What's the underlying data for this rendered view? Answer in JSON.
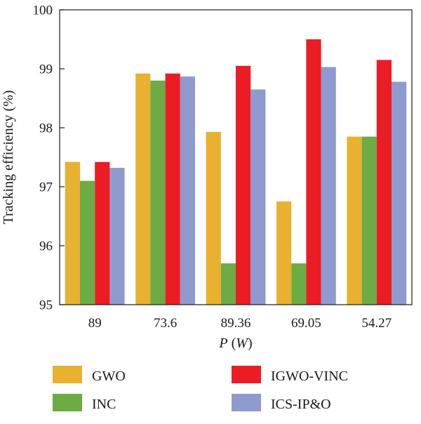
{
  "chart_data": {
    "type": "bar",
    "xlabel": "P (W)",
    "ylabel": "Tracking efficiency (%)",
    "ylim": [
      95,
      100
    ],
    "yticks": [
      95,
      96,
      97,
      98,
      99,
      100
    ],
    "categories": [
      "89",
      "73.6",
      "89.36",
      "69.05",
      "54.27"
    ],
    "series": [
      {
        "name": "GWO",
        "color": "#E8B12F",
        "values": [
          97.42,
          98.92,
          97.93,
          96.75,
          97.85
        ]
      },
      {
        "name": "INC",
        "color": "#6DAB45",
        "values": [
          97.1,
          98.8,
          95.7,
          95.7,
          97.85
        ]
      },
      {
        "name": "IGWO-VINC",
        "color": "#EC1C24",
        "values": [
          97.42,
          98.92,
          99.05,
          99.5,
          99.15
        ]
      },
      {
        "name": "ICS-IP&O",
        "color": "#8F9BCE",
        "values": [
          97.32,
          98.87,
          98.65,
          99.03,
          98.78
        ]
      }
    ],
    "grid": false,
    "legend_position": "bottom"
  }
}
